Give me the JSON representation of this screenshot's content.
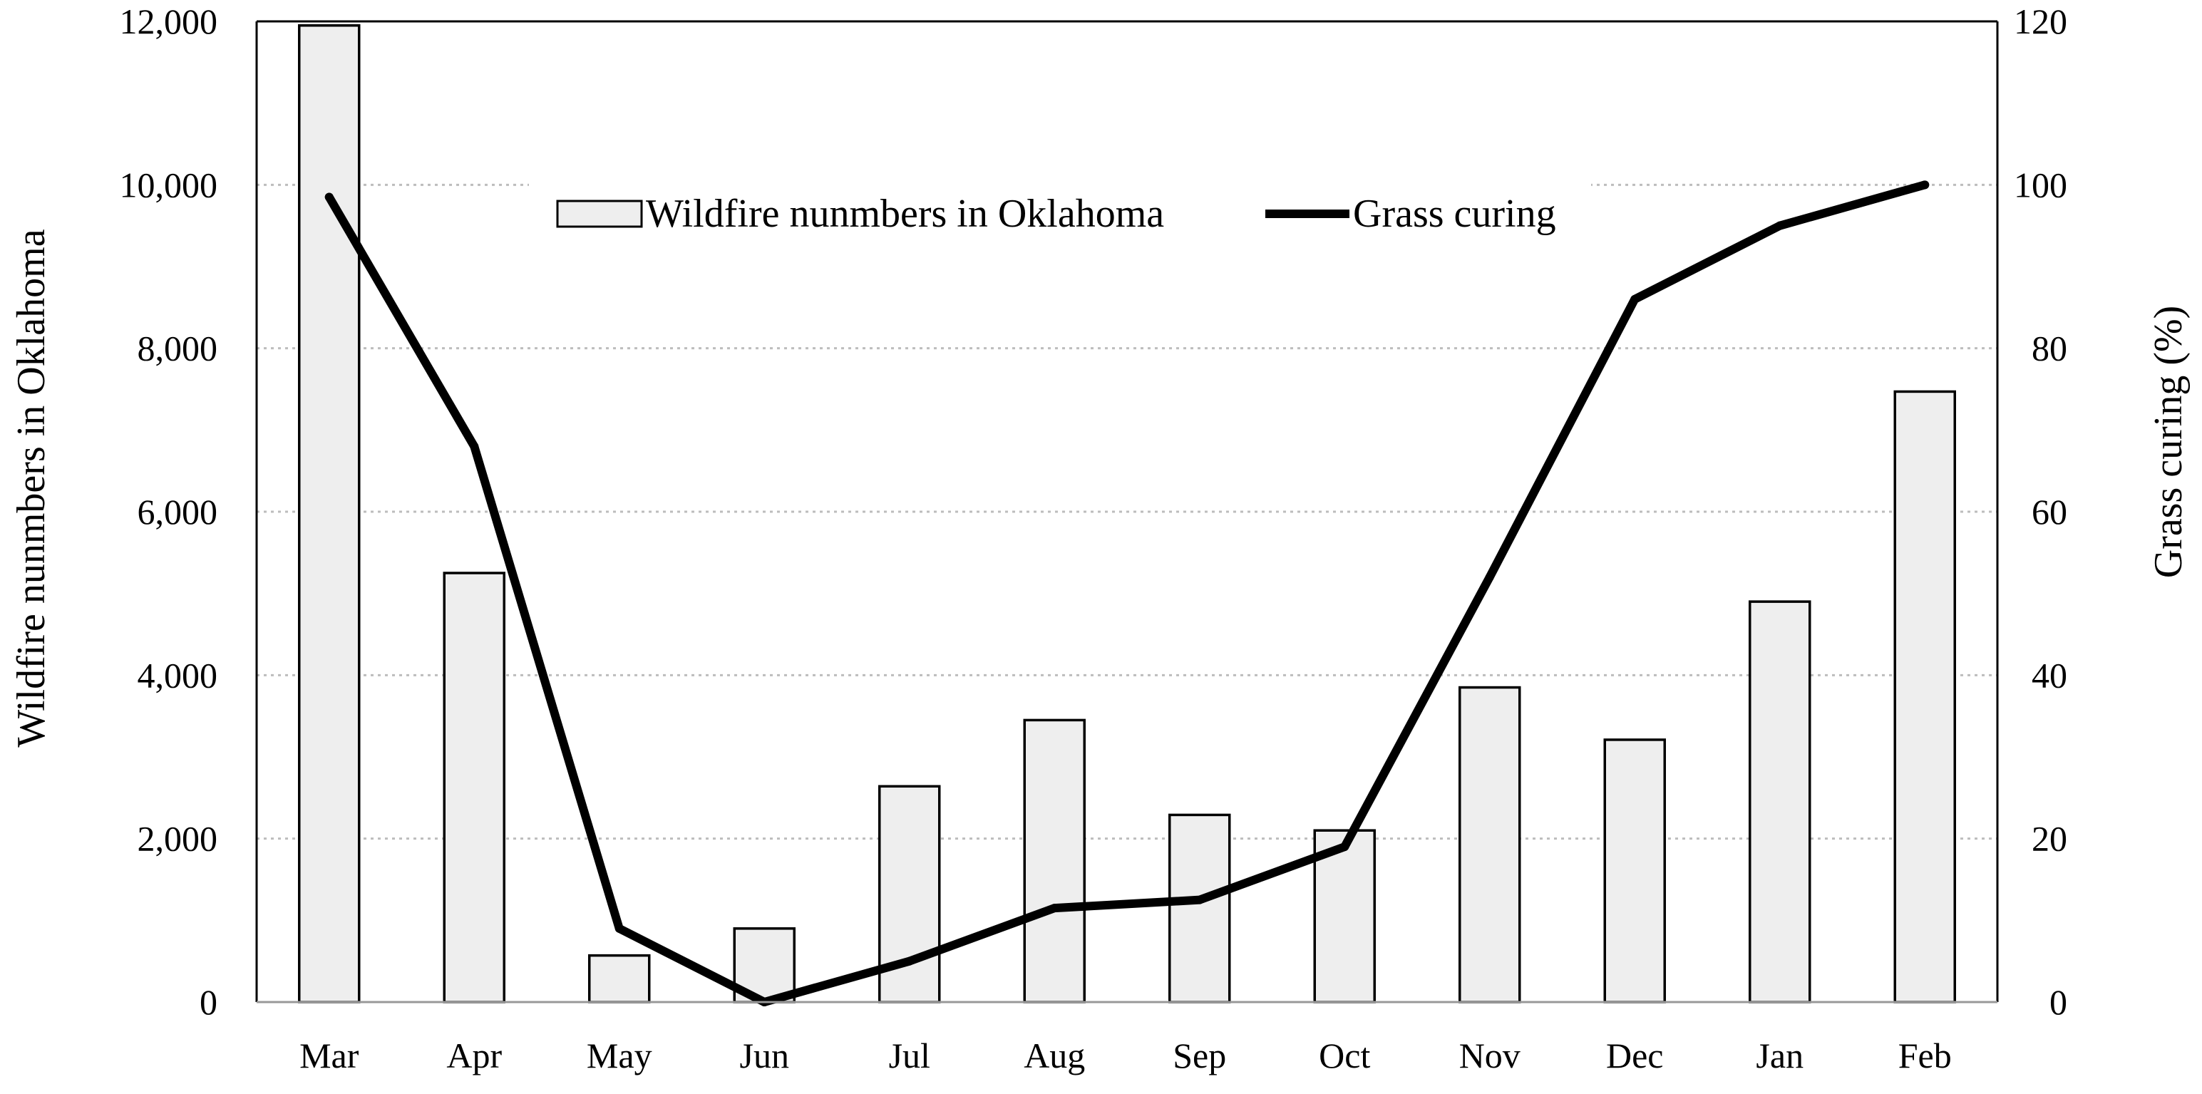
{
  "colors": {
    "bar_fill": "#eeeeee",
    "bar_stroke": "#000000",
    "line": "#000000",
    "grid": "#bdbdbd",
    "axis": "#000000",
    "background": "#ffffff"
  },
  "chart_data": {
    "type": "bar+line",
    "title": "",
    "categories": [
      "Mar",
      "Apr",
      "May",
      "Jun",
      "Jul",
      "Aug",
      "Sep",
      "Oct",
      "Nov",
      "Dec",
      "Jan",
      "Feb"
    ],
    "series": [
      {
        "name": "Wildfire nunmbers in Oklahoma",
        "type": "bar",
        "axis": "left",
        "values": [
          11950,
          5250,
          570,
          900,
          2640,
          3450,
          2290,
          2100,
          3850,
          3210,
          4900,
          7470
        ]
      },
      {
        "name": "Grass curing",
        "type": "line",
        "axis": "right",
        "values": [
          98.5,
          68,
          9,
          0,
          5,
          11.5,
          12.5,
          19,
          52,
          86,
          95,
          100
        ]
      }
    ],
    "ylabel_left": "Wildfire nunmbers in Oklahoma",
    "ylabel_right": "Grass curing (%)",
    "xlabel": "",
    "ylim_left": [
      0,
      12000
    ],
    "ylim_right": [
      0,
      120
    ],
    "yticks_left": [
      "0",
      "2,000",
      "4,000",
      "6,000",
      "8,000",
      "10,000",
      "12,000"
    ],
    "yticks_right": [
      "0",
      "20",
      "40",
      "60",
      "80",
      "100",
      "120"
    ],
    "grid": true,
    "legend_position": "top-center"
  }
}
